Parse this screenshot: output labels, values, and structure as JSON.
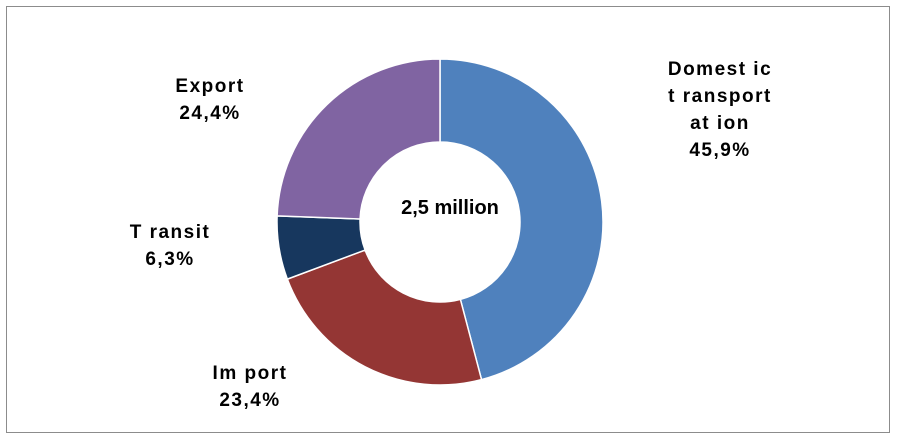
{
  "chart_data": {
    "type": "pie",
    "variant": "donut",
    "center_text": "2,5 million",
    "slices": [
      {
        "label_lines": [
          "Domest ic",
          "t ransport",
          "at ion"
        ],
        "value_text": "45,9%",
        "value": 45.9,
        "color": "#4f81bd"
      },
      {
        "label_lines": [
          "Im port"
        ],
        "value_text": "23,4%",
        "value": 23.4,
        "color": "#943634"
      },
      {
        "label_lines": [
          "T ransit"
        ],
        "value_text": "6,3%",
        "value": 6.3,
        "color": "#17375e"
      },
      {
        "label_lines": [
          "Export"
        ],
        "value_text": "24,4%",
        "value": 24.4,
        "color": "#8064a2"
      }
    ],
    "start_angle_deg": 0,
    "direction": "clockwise",
    "legend": "none"
  }
}
